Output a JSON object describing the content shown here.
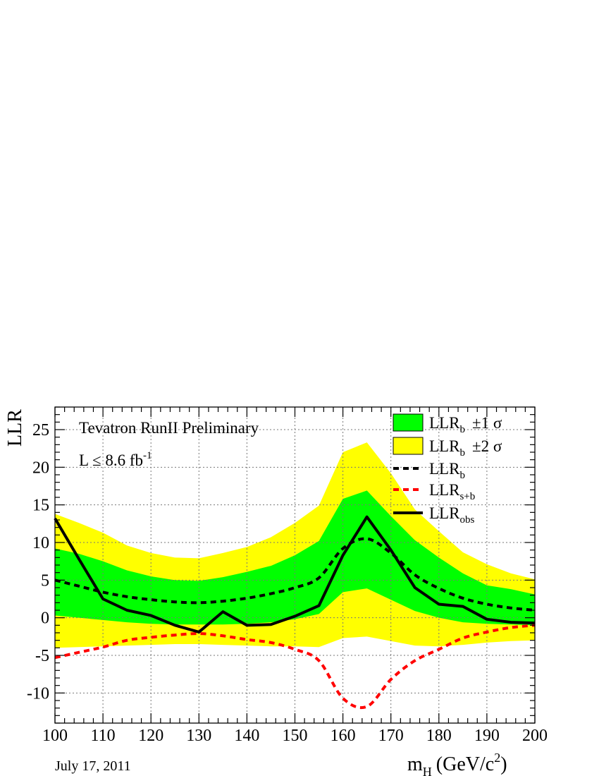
{
  "chart_data": {
    "type": "line",
    "xlabel_main": "m",
    "xlabel_sub": "H",
    "xlabel_unit": "(GeV/c",
    "xlabel_unit_sup": "2",
    "xlabel_unit_close": ")",
    "ylabel": "LLR",
    "xlim": [
      100,
      200
    ],
    "ylim": [
      -14,
      28
    ],
    "xticks": [
      "100",
      "110",
      "120",
      "130",
      "140",
      "150",
      "160",
      "170",
      "180",
      "190",
      "200"
    ],
    "yticks": [
      "-10",
      "-5",
      "0",
      "5",
      "10",
      "15",
      "20",
      "25"
    ],
    "grid": true,
    "legend_position": "top-right",
    "annotations": {
      "title": "Tevatron RunII Preliminary",
      "lumi_main": "L ≤ 8.6 fb",
      "lumi_sup": "-1",
      "date": "July 17, 2011"
    },
    "legend": [
      {
        "key": "band1",
        "main": "LLR",
        "sub": "b",
        "suffix": "±1 σ",
        "color": "#00ff00"
      },
      {
        "key": "band2",
        "main": "LLR",
        "sub": "b",
        "suffix": "±2 σ",
        "color": "#ffff00"
      },
      {
        "key": "llrb",
        "main": "LLR",
        "sub": "b",
        "suffix": "",
        "color": "#000000"
      },
      {
        "key": "llrsb",
        "main": "LLR",
        "sub": "s+b",
        "suffix": "",
        "color": "#ff0000"
      },
      {
        "key": "llrobs",
        "main": "LLR",
        "sub": "obs",
        "suffix": "",
        "color": "#000000"
      }
    ],
    "x": [
      100,
      105,
      110,
      115,
      120,
      125,
      130,
      135,
      140,
      145,
      150,
      155,
      160,
      165,
      170,
      175,
      180,
      185,
      190,
      195,
      200
    ],
    "band2_upper": [
      13.8,
      12.6,
      11.3,
      9.6,
      8.6,
      8.0,
      7.9,
      8.6,
      9.4,
      10.7,
      12.6,
      14.9,
      22.0,
      23.3,
      19.2,
      14.4,
      11.5,
      8.7,
      7.1,
      5.9,
      5.1
    ],
    "band2_lower": [
      -4.0,
      -3.9,
      -3.8,
      -3.7,
      -3.6,
      -3.5,
      -3.5,
      -3.6,
      -3.7,
      -3.8,
      -3.8,
      -3.9,
      -2.7,
      -2.5,
      -3.1,
      -3.7,
      -3.8,
      -3.6,
      -3.3,
      -3.1,
      -3.0
    ],
    "band1_upper": [
      9.2,
      8.5,
      7.5,
      6.3,
      5.5,
      5.0,
      4.9,
      5.4,
      6.1,
      6.9,
      8.3,
      10.2,
      15.8,
      16.9,
      13.5,
      10.3,
      8.0,
      5.9,
      4.3,
      3.8,
      3.1
    ],
    "band1_lower": [
      0.3,
      0.0,
      -0.3,
      -0.6,
      -0.8,
      -0.9,
      -0.9,
      -0.9,
      -0.8,
      -0.6,
      -0.2,
      0.5,
      3.4,
      3.9,
      2.4,
      0.9,
      0.0,
      -0.6,
      -0.8,
      -0.9,
      -1.0
    ],
    "llr_b": [
      5.0,
      4.2,
      3.4,
      2.8,
      2.4,
      2.1,
      2.0,
      2.2,
      2.6,
      3.2,
      4.0,
      5.3,
      9.2,
      10.5,
      8.6,
      5.7,
      3.9,
      2.6,
      1.8,
      1.3,
      1.0
    ],
    "llr_sb": [
      -5.3,
      -4.6,
      -3.9,
      -3.0,
      -2.6,
      -2.3,
      -2.1,
      -2.4,
      -2.9,
      -3.3,
      -4.2,
      -5.7,
      -10.7,
      -11.8,
      -8.2,
      -5.7,
      -4.2,
      -2.7,
      -1.9,
      -1.3,
      -1.0
    ],
    "llr_obs": [
      13.2,
      7.8,
      2.5,
      1.0,
      0.3,
      -1.0,
      -1.9,
      0.8,
      -1.0,
      -0.9,
      0.2,
      1.6,
      8.3,
      13.4,
      9.0,
      4.0,
      1.8,
      1.5,
      -0.2,
      -0.6,
      -0.7
    ]
  }
}
